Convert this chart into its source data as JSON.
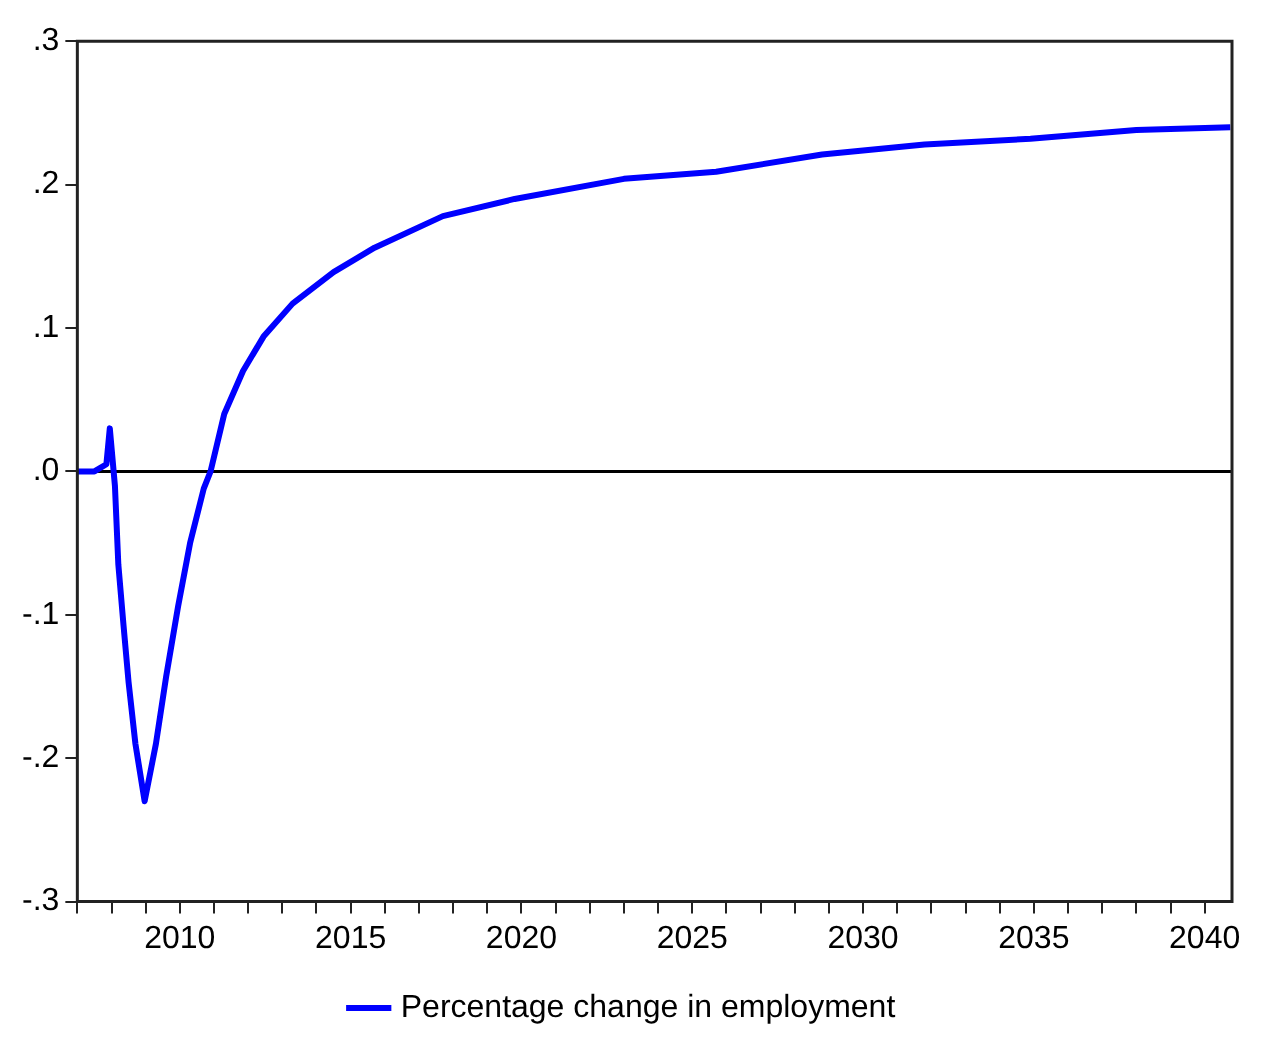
{
  "chart_data": {
    "type": "line",
    "x": [
      2007,
      2007.5,
      2007.85,
      2007.95,
      2008.1,
      2008.2,
      2008.35,
      2008.5,
      2008.7,
      2008.97,
      2009.3,
      2009.6,
      2009.95,
      2010.3,
      2010.7,
      2010.9,
      2011.3,
      2011.85,
      2012.45,
      2013.3,
      2014.5,
      2015.7,
      2017.7,
      2019.8,
      2023,
      2025.7,
      2028.8,
      2031.8,
      2034.9,
      2038,
      2040.75
    ],
    "series": [
      {
        "name": "Percentage change in employment",
        "color": "#0000ff",
        "values": [
          0,
          0,
          0.005,
          0.03,
          -0.01,
          -0.065,
          -0.107,
          -0.147,
          -0.19,
          -0.23,
          -0.19,
          -0.143,
          -0.094,
          -0.05,
          -0.012,
          0,
          0.04,
          0.07,
          0.094,
          0.117,
          0.139,
          0.156,
          0.178,
          0.19,
          0.204,
          0.209,
          0.221,
          0.228,
          0.232,
          0.238,
          0.24
        ]
      }
    ],
    "xlim": [
      2007,
      2040.8
    ],
    "xticks": [
      {
        "value": 2007,
        "label": null
      },
      {
        "value": 2008,
        "label": null
      },
      {
        "value": 2009,
        "label": null
      },
      2010,
      {
        "value": 2011,
        "label": null
      },
      {
        "value": 2012,
        "label": null
      },
      {
        "value": 2013,
        "label": null
      },
      {
        "value": 2014,
        "label": null
      },
      2015,
      {
        "value": 2016,
        "label": null
      },
      {
        "value": 2017,
        "label": null
      },
      {
        "value": 2018,
        "label": null
      },
      {
        "value": 2019,
        "label": null
      },
      2020,
      {
        "value": 2021,
        "label": null
      },
      {
        "value": 2022,
        "label": null
      },
      {
        "value": 2023,
        "label": null
      },
      {
        "value": 2024,
        "label": null
      },
      2025,
      {
        "value": 2026,
        "label": null
      },
      {
        "value": 2027,
        "label": null
      },
      {
        "value": 2028,
        "label": null
      },
      {
        "value": 2029,
        "label": null
      },
      2030,
      {
        "value": 2031,
        "label": null
      },
      {
        "value": 2032,
        "label": null
      },
      {
        "value": 2033,
        "label": null
      },
      {
        "value": 2034,
        "label": null
      },
      2035,
      {
        "value": 2036,
        "label": null
      },
      {
        "value": 2037,
        "label": null
      },
      {
        "value": 2038,
        "label": null
      },
      {
        "value": 2039,
        "label": null
      },
      2040
    ],
    "ylim": [
      -0.3,
      0.3
    ],
    "yticks": [
      {
        "value": -0.3,
        "label": "-.3"
      },
      {
        "value": -0.2,
        "label": "-.2"
      },
      {
        "value": -0.1,
        "label": "-.1"
      },
      {
        "value": 0,
        "label": ".0"
      },
      {
        "value": 0.1,
        "label": ".1"
      },
      {
        "value": 0.2,
        "label": ".2"
      },
      {
        "value": 0.3,
        "label": ".3"
      }
    ],
    "ref_lines": [
      {
        "axis": "y",
        "value": 0,
        "color": "#000000"
      }
    ],
    "legend": "bottom",
    "grid": false,
    "marker": "none",
    "line_style": "solid"
  }
}
